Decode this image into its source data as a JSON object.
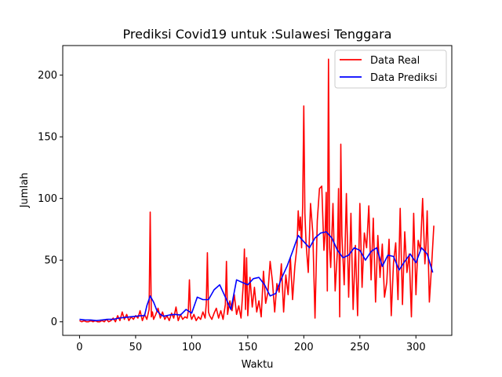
{
  "chart_data": {
    "type": "line",
    "title": "Prediksi Covid19 untuk :Sulawesi Tenggara",
    "xlabel": "Waktu",
    "ylabel": "Jumlah",
    "xlim": [
      -15,
      332
    ],
    "ylim": [
      -11,
      224
    ],
    "xticks": [
      0,
      50,
      100,
      150,
      200,
      250,
      300
    ],
    "yticks": [
      0,
      50,
      100,
      150,
      200
    ],
    "legend": {
      "position": "top-right"
    },
    "series": [
      {
        "name": "Data Real",
        "color": "#ff0000",
        "x": [
          0,
          2,
          4,
          6,
          8,
          10,
          12,
          14,
          16,
          18,
          20,
          22,
          24,
          26,
          28,
          30,
          32,
          34,
          36,
          38,
          40,
          42,
          44,
          46,
          48,
          50,
          52,
          54,
          56,
          58,
          60,
          62,
          63,
          64,
          65,
          66,
          68,
          70,
          72,
          74,
          76,
          78,
          80,
          82,
          84,
          86,
          88,
          90,
          92,
          94,
          96,
          97,
          98,
          99,
          100,
          102,
          104,
          106,
          108,
          110,
          112,
          113,
          114,
          115,
          116,
          118,
          120,
          122,
          124,
          126,
          128,
          130,
          131,
          132,
          134,
          136,
          138,
          140,
          142,
          144,
          146,
          147,
          148,
          149,
          150,
          152,
          154,
          156,
          158,
          160,
          162,
          164,
          166,
          168,
          170,
          172,
          174,
          176,
          178,
          180,
          182,
          184,
          186,
          188,
          190,
          192,
          194,
          195,
          196,
          197,
          198,
          199,
          200,
          201,
          202,
          204,
          206,
          208,
          210,
          212,
          214,
          216,
          218,
          219,
          220,
          221,
          222,
          223,
          224,
          226,
          228,
          230,
          231,
          232,
          233,
          234,
          236,
          238,
          240,
          242,
          244,
          246,
          248,
          250,
          252,
          254,
          256,
          258,
          260,
          262,
          264,
          266,
          268,
          270,
          272,
          274,
          276,
          278,
          280,
          282,
          284,
          286,
          288,
          290,
          292,
          294,
          296,
          298,
          300,
          302,
          304,
          306,
          308,
          309,
          310,
          312,
          314,
          316
        ],
        "values": [
          1,
          0,
          1,
          0,
          0,
          1,
          0,
          1,
          0,
          0,
          1,
          0,
          2,
          0,
          1,
          3,
          0,
          5,
          1,
          8,
          2,
          6,
          1,
          4,
          2,
          5,
          3,
          9,
          1,
          6,
          2,
          10,
          89,
          4,
          8,
          2,
          6,
          11,
          3,
          8,
          2,
          5,
          1,
          7,
          3,
          12,
          1,
          6,
          2,
          4,
          3,
          9,
          34,
          5,
          2,
          6,
          1,
          4,
          2,
          8,
          3,
          15,
          56,
          8,
          5,
          2,
          7,
          11,
          3,
          9,
          2,
          14,
          49,
          6,
          17,
          9,
          22,
          6,
          13,
          3,
          30,
          59,
          10,
          52,
          5,
          36,
          12,
          28,
          8,
          17,
          4,
          41,
          15,
          24,
          49,
          33,
          8,
          31,
          24,
          47,
          8,
          38,
          22,
          52,
          18,
          45,
          62,
          90,
          74,
          85,
          60,
          95,
          175,
          88,
          64,
          40,
          96,
          72,
          3,
          82,
          108,
          110,
          58,
          72,
          105,
          25,
          213,
          60,
          44,
          96,
          25,
          58,
          108,
          4,
          144,
          70,
          30,
          104,
          20,
          88,
          10,
          62,
          5,
          96,
          28,
          72,
          60,
          94,
          34,
          84,
          16,
          70,
          36,
          63,
          20,
          32,
          67,
          5,
          48,
          64,
          18,
          92,
          14,
          73,
          40,
          55,
          4,
          88,
          22,
          66,
          58,
          100,
          47,
          62,
          90,
          16,
          46,
          78
        ]
      },
      {
        "name": "Data Prediksi",
        "color": "#0000ff",
        "x": [
          0,
          5,
          10,
          15,
          20,
          25,
          30,
          35,
          40,
          45,
          50,
          55,
          58,
          60,
          63,
          66,
          69,
          72,
          75,
          80,
          85,
          90,
          95,
          100,
          105,
          110,
          115,
          120,
          125,
          130,
          135,
          140,
          145,
          150,
          155,
          160,
          165,
          170,
          175,
          180,
          185,
          190,
          195,
          200,
          205,
          210,
          215,
          220,
          225,
          230,
          235,
          240,
          245,
          250,
          255,
          260,
          265,
          270,
          275,
          280,
          285,
          290,
          295,
          300,
          305,
          310,
          315
        ],
        "values": [
          2,
          1.5,
          1.5,
          1,
          1.5,
          2,
          2,
          3,
          3.5,
          4,
          4.5,
          5,
          5,
          13,
          21,
          16,
          9,
          6,
          4.5,
          5.5,
          6,
          5.5,
          10,
          7,
          20,
          18,
          18,
          26,
          30,
          20,
          10,
          34,
          32,
          30,
          35,
          36,
          30,
          21,
          23,
          35,
          45,
          57,
          70,
          65,
          60,
          68,
          72,
          73,
          68,
          58,
          52,
          54,
          60,
          58,
          50,
          57,
          60,
          45,
          54,
          53,
          42,
          49,
          55,
          48,
          60,
          55,
          40
        ]
      }
    ]
  }
}
